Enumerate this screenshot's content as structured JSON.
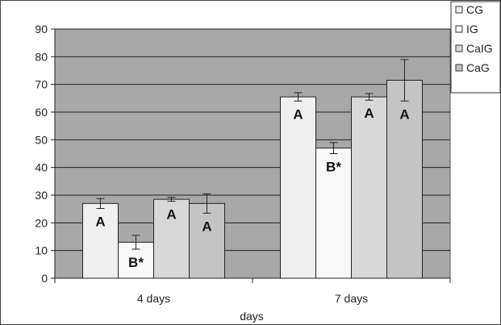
{
  "chart_data": {
    "type": "bar",
    "title": "",
    "xlabel": "days",
    "ylabel": "",
    "ylim": [
      0,
      90
    ],
    "yticks": [
      0,
      10,
      20,
      30,
      40,
      50,
      60,
      70,
      80,
      90
    ],
    "grid": true,
    "legend_position": "top-right",
    "categories": [
      "4 days",
      "7 days"
    ],
    "series": [
      {
        "name": "CG",
        "values": [
          27,
          65.5
        ],
        "errors": [
          1.8,
          1.5
        ],
        "labels": [
          "A",
          "A"
        ],
        "color": "#f0f0f0"
      },
      {
        "name": "IG",
        "values": [
          13,
          47
        ],
        "errors": [
          2.5,
          2.0
        ],
        "labels": [
          "B*",
          "B*"
        ],
        "color": "#f8f8f8"
      },
      {
        "name": "CaIG",
        "values": [
          28.5,
          65.5
        ],
        "errors": [
          0.7,
          1.2
        ],
        "labels": [
          "A",
          "A"
        ],
        "color": "#d8d8d8"
      },
      {
        "name": "CaG",
        "values": [
          27,
          71.5
        ],
        "errors": [
          3.5,
          7.5
        ],
        "labels": [
          "A",
          "A"
        ],
        "color": "#c4c4c4"
      }
    ],
    "colors": {
      "plot_background": "#a8a8a8",
      "gridline": "#222222",
      "bar_border": "#222222"
    }
  }
}
